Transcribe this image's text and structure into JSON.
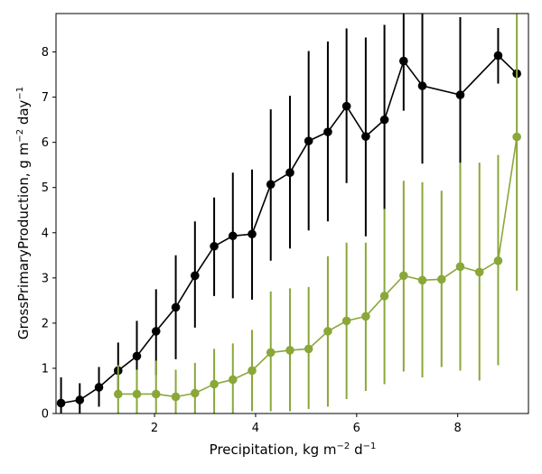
{
  "chart_data": {
    "type": "line",
    "xlabel": "Precipitation,  kg m",
    "xlabel_unit_sup": "−2",
    "xlabel_unit_tail": " d",
    "xlabel_unit_sup2": "−1",
    "ylabel": "GrossPrimaryProduction,  g m",
    "ylabel_sup": "−2",
    "ylabel_tail": " day",
    "ylabel_sup2": "−1",
    "xlim": [
      0.05,
      9.4
    ],
    "ylim": [
      0,
      8.85
    ],
    "xticks": [
      2,
      4,
      6,
      8
    ],
    "yticks": [
      0,
      1,
      2,
      3,
      4,
      5,
      6,
      7,
      8
    ],
    "grid": false,
    "series": [
      {
        "color": "#000000",
        "x": [
          0.15,
          0.52,
          0.9,
          1.28,
          1.65,
          2.03,
          2.42,
          2.8,
          3.18,
          3.55,
          3.93,
          4.3,
          4.68,
          5.05,
          5.43,
          5.8,
          6.18,
          6.55,
          6.93,
          7.3,
          8.05,
          8.8,
          9.17
        ],
        "y": [
          0.23,
          0.3,
          0.58,
          0.95,
          1.27,
          1.82,
          2.35,
          3.05,
          3.7,
          3.93,
          3.97,
          5.07,
          5.33,
          6.03,
          6.23,
          6.8,
          6.13,
          6.5,
          7.8,
          7.25,
          7.05,
          7.92,
          7.52
        ],
        "yerr_low": [
          0.0,
          0.0,
          0.15,
          0.35,
          0.5,
          0.85,
          1.2,
          1.9,
          2.6,
          2.55,
          2.52,
          3.38,
          3.65,
          4.05,
          4.25,
          5.1,
          3.92,
          4.5,
          6.7,
          5.53,
          5.3,
          7.3,
          7.52
        ],
        "yerr_high": [
          0.8,
          0.67,
          1.03,
          1.57,
          2.05,
          2.75,
          3.5,
          4.25,
          4.78,
          5.33,
          5.4,
          6.73,
          7.03,
          8.02,
          8.23,
          8.52,
          8.32,
          8.6,
          8.85,
          8.85,
          8.77,
          8.53,
          7.52
        ]
      },
      {
        "color": "#8aa73a",
        "x": [
          1.28,
          1.65,
          2.03,
          2.42,
          2.8,
          3.18,
          3.55,
          3.93,
          4.3,
          4.68,
          5.05,
          5.43,
          5.8,
          6.18,
          6.55,
          6.93,
          7.3,
          7.68,
          8.05,
          8.43,
          8.8,
          9.17
        ],
        "y": [
          0.43,
          0.43,
          0.43,
          0.37,
          0.45,
          0.65,
          0.75,
          0.95,
          1.35,
          1.4,
          1.43,
          1.82,
          2.05,
          2.15,
          2.6,
          3.05,
          2.95,
          2.97,
          3.25,
          3.13,
          3.38,
          6.12
        ],
        "yerr_low": [
          0.0,
          0.0,
          0.0,
          0.0,
          0.0,
          0.0,
          0.0,
          0.05,
          0.05,
          0.05,
          0.1,
          0.15,
          0.32,
          0.5,
          0.65,
          0.93,
          0.8,
          1.03,
          0.95,
          0.73,
          1.07,
          2.72
        ],
        "yerr_high": [
          1.07,
          0.97,
          1.17,
          0.97,
          1.12,
          1.43,
          1.55,
          1.85,
          2.7,
          2.77,
          2.8,
          3.48,
          3.78,
          3.78,
          4.53,
          5.15,
          5.12,
          4.93,
          5.55,
          5.55,
          5.72,
          8.85
        ]
      }
    ]
  }
}
